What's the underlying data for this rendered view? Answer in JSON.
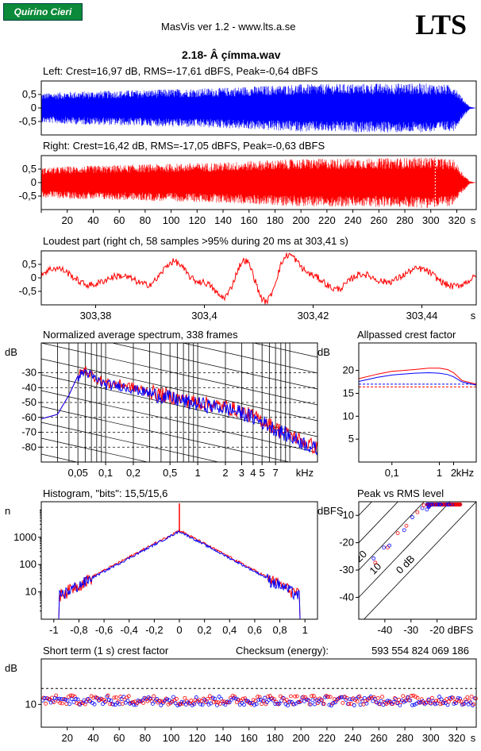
{
  "header": {
    "logo_label": "Quirino Cieri",
    "app_title": "MasVis ver 1.2 - www.lts.a.se",
    "brand": "LTS",
    "file_title": "2.18- Â çímma.wav"
  },
  "colors": {
    "left": "#0000ff",
    "right": "#ff0000",
    "grid": "#000000"
  },
  "chart_data": [
    {
      "type": "line",
      "name": "left-waveform",
      "title": "Left: Crest=16,97 dB, RMS=-17,61 dBFS, Peak=-0,64 dBFS",
      "ylim": [
        -1,
        1
      ],
      "ytick_labels": [
        "0,5",
        "0",
        "-0,5"
      ],
      "ytick_values": [
        0.5,
        0,
        -0.5
      ],
      "xlim": [
        0,
        335
      ],
      "envelope": {
        "x": [
          0,
          20,
          60,
          100,
          140,
          160,
          200,
          240,
          280,
          300,
          318,
          324,
          330,
          335
        ],
        "amp": [
          0.55,
          0.6,
          0.65,
          0.7,
          0.75,
          0.8,
          0.88,
          0.9,
          0.92,
          0.9,
          0.85,
          0.4,
          0.05,
          0.0
        ]
      }
    },
    {
      "type": "line",
      "name": "right-waveform",
      "title": "Right: Crest=16,42 dB, RMS=-17,05 dBFS, Peak=-0,63 dBFS",
      "ylim": [
        -1,
        1
      ],
      "ytick_labels": [
        "0,5",
        "0",
        "-0,5"
      ],
      "ytick_values": [
        0.5,
        0,
        -0.5
      ],
      "xlim": [
        0,
        335
      ],
      "xticks": [
        20,
        40,
        60,
        80,
        100,
        120,
        140,
        160,
        180,
        200,
        220,
        240,
        260,
        280,
        300,
        320
      ],
      "xtick_labels": [
        "20",
        "40",
        "60",
        "80",
        "100",
        "120",
        "140",
        "160",
        "180",
        "200",
        "220",
        "240",
        "260",
        "280",
        "300",
        "320"
      ],
      "xunit": "s",
      "marker_x": 303.41,
      "envelope": {
        "x": [
          0,
          20,
          60,
          100,
          140,
          160,
          200,
          240,
          280,
          300,
          318,
          324,
          330,
          335
        ],
        "amp": [
          0.55,
          0.6,
          0.65,
          0.7,
          0.75,
          0.8,
          0.88,
          0.9,
          0.92,
          0.95,
          0.85,
          0.4,
          0.05,
          0.0
        ]
      }
    },
    {
      "type": "line",
      "name": "loudest-part",
      "title": "Loudest part (right ch, 58 samples >95% during 20 ms at 303,41 s)",
      "ylim": [
        -1,
        1
      ],
      "ytick_labels": [
        "0,5",
        "0",
        "-0,5"
      ],
      "ytick_values": [
        0.5,
        0,
        -0.5
      ],
      "xlim": [
        303.37,
        303.45
      ],
      "xticks": [
        303.38,
        303.4,
        303.42,
        303.44
      ],
      "xtick_labels": [
        "303,38",
        "303,4",
        "303,42",
        "303,44"
      ],
      "xunit": "s"
    },
    {
      "type": "line",
      "name": "spectrum",
      "title": "Normalized average spectrum, 338 frames",
      "ylabel": "dB",
      "ylim": [
        -90,
        -10
      ],
      "yticks": [
        -30,
        -40,
        -50,
        -60,
        -70,
        -80
      ],
      "ytick_labels": [
        "-30",
        "-40",
        "-50",
        "-60",
        "-70",
        "-80"
      ],
      "xlim": [
        0.02,
        20
      ],
      "xscale": "log",
      "xticks": [
        0.05,
        0.1,
        0.2,
        0.5,
        1,
        2,
        3,
        4,
        5,
        7
      ],
      "xtick_labels": [
        "0,05",
        "0,1",
        "0,2",
        "0,5",
        "1",
        "2",
        "3",
        "4",
        "5",
        "7"
      ],
      "xunit": "kHz",
      "curve": {
        "x": [
          0.02,
          0.03,
          0.04,
          0.05,
          0.06,
          0.08,
          0.1,
          0.15,
          0.2,
          0.3,
          0.5,
          0.8,
          1,
          2,
          3,
          5,
          7,
          10,
          15,
          20
        ],
        "y": [
          -61,
          -58,
          -45,
          -32,
          -28,
          -34,
          -37,
          -38,
          -40,
          -43,
          -46,
          -49,
          -50,
          -53,
          -56,
          -62,
          -67,
          -72,
          -77,
          -81
        ]
      }
    },
    {
      "type": "line",
      "name": "allpassed-crest",
      "title": "Allpassed crest factor",
      "ylabel": "dB",
      "ylim": [
        0,
        26
      ],
      "yticks": [
        5,
        10,
        15,
        20
      ],
      "ytick_labels": [
        "5",
        "10",
        "15",
        "20"
      ],
      "xlim": [
        0.02,
        6
      ],
      "xscale": "log",
      "xticks": [
        0.1,
        1,
        2
      ],
      "xtick_labels": [
        "0,1",
        "1",
        "2"
      ],
      "xunit": "kHz",
      "series": [
        {
          "color": "#ff0000",
          "x": [
            0.02,
            0.05,
            0.1,
            0.3,
            0.6,
            1,
            1.5,
            2,
            3,
            6
          ],
          "y": [
            18.2,
            19.2,
            19.8,
            20.2,
            20.5,
            20.5,
            20.2,
            19.5,
            17.8,
            17
          ]
        },
        {
          "color": "#0000ff",
          "x": [
            0.02,
            0.05,
            0.1,
            0.3,
            0.6,
            1,
            1.5,
            2,
            3,
            6
          ],
          "y": [
            17.6,
            18.5,
            19.0,
            19.4,
            19.5,
            19.4,
            19.1,
            18.6,
            17.5,
            16.8
          ]
        }
      ],
      "ref_lines": [
        {
          "y": 17.0,
          "color": "#0000ff"
        },
        {
          "y": 16.4,
          "color": "#ff0000"
        }
      ]
    },
    {
      "type": "line",
      "name": "histogram",
      "title": "Histogram, \"bits\": 15,5/15,6",
      "ylabel": "n",
      "yscale": "log",
      "ylim": [
        1,
        20000
      ],
      "yticks": [
        10,
        100,
        1000
      ],
      "ytick_labels": [
        "10",
        "100",
        "1000"
      ],
      "xlim": [
        -1.1,
        1.1
      ],
      "xticks": [
        -1,
        -0.8,
        -0.6,
        -0.4,
        -0.2,
        0,
        0.2,
        0.4,
        0.6,
        0.8,
        1
      ],
      "xtick_labels": [
        "-1",
        "-0,8",
        "-0,6",
        "-0,4",
        "-0,2",
        "0",
        "0,2",
        "0,4",
        "0,6",
        "0,8",
        "1"
      ]
    },
    {
      "type": "scatter",
      "name": "peak-vs-rms",
      "title": "Peak vs RMS level",
      "ylabel": "dBFS",
      "xunit": "dBFS",
      "xlim": [
        -50,
        -5
      ],
      "ylim": [
        -48,
        -5
      ],
      "xticks": [
        -40,
        -30,
        -20
      ],
      "xtick_labels": [
        "-40",
        "-30",
        "-20"
      ],
      "yticks": [
        -10,
        -20,
        -30,
        -40
      ],
      "ytick_labels": [
        "-10",
        "-20",
        "-30",
        "-40"
      ],
      "diag_labels": [
        "40",
        "30",
        "20",
        "10",
        "0 dB"
      ],
      "diag_offsets": [
        40,
        30,
        20,
        10,
        0
      ]
    },
    {
      "type": "scatter",
      "name": "short-term-crest",
      "title": "Short term (1 s) crest factor",
      "checksum_label": "Checksum (energy):",
      "checksum_value": "593 554 824 069 186",
      "ylabel": "dB",
      "ylim": [
        0,
        30
      ],
      "yticks": [
        10
      ],
      "ytick_labels": [
        "10"
      ],
      "ref_y": [
        17,
        16.4
      ],
      "xlim": [
        0,
        335
      ],
      "xticks": [
        20,
        40,
        60,
        80,
        100,
        120,
        140,
        160,
        180,
        200,
        220,
        240,
        260,
        280,
        300,
        320
      ],
      "xtick_labels": [
        "20",
        "40",
        "60",
        "80",
        "100",
        "120",
        "140",
        "160",
        "180",
        "200",
        "220",
        "240",
        "260",
        "280",
        "300",
        "320"
      ],
      "xunit": "s"
    }
  ]
}
